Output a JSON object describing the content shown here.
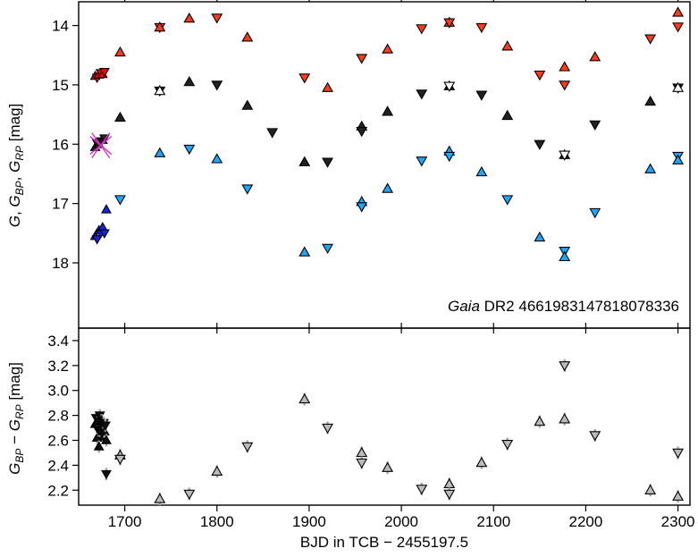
{
  "chart_data": [
    {
      "type": "scatter",
      "panel": "top",
      "annotation_italic": "Gaia",
      "annotation_rest": " DR2 4661983147818078336",
      "ylabel": "G, G_BP, G_RP [mag]",
      "ylim": [
        19.1,
        13.6
      ],
      "xlim": [
        1650,
        2313
      ],
      "yticks": [
        "14",
        "15",
        "16",
        "17",
        "18"
      ],
      "colors": {
        "G": "#222222",
        "BP": "#19a8ff",
        "RP": "#ff3a1a",
        "BP_dense": "#1122ee",
        "RP_dense": "#ff0000",
        "outlier": "#dd33cc"
      },
      "series": [
        {
          "name": "G",
          "markers": "black triangles",
          "points": [
            [
              1668,
              16.05
            ],
            [
              1670,
              15.98
            ],
            [
              1672,
              16.0
            ],
            [
              1674,
              15.95
            ],
            [
              1676,
              15.93
            ],
            [
              1678,
              15.9
            ],
            [
              1695,
              15.55
            ],
            [
              1738,
              15.1
            ],
            [
              1770,
              14.95
            ],
            [
              1800,
              15.0
            ],
            [
              1833,
              15.35
            ],
            [
              1860,
              15.8
            ],
            [
              1895,
              16.3
            ],
            [
              1920,
              16.3
            ],
            [
              1957,
              15.7
            ],
            [
              1957,
              15.78
            ],
            [
              1985,
              15.45
            ],
            [
              2022,
              15.15
            ],
            [
              2052,
              15.02
            ],
            [
              2087,
              15.17
            ],
            [
              2115,
              15.52
            ],
            [
              2150,
              16.0
            ],
            [
              2177,
              16.18
            ],
            [
              2210,
              15.67
            ],
            [
              2270,
              15.28
            ],
            [
              2300,
              15.05
            ]
          ]
        },
        {
          "name": "G_BP",
          "markers": "blue triangles",
          "points": [
            [
              1668,
              17.55
            ],
            [
              1670,
              17.6
            ],
            [
              1672,
              17.45
            ],
            [
              1674,
              17.5
            ],
            [
              1676,
              17.4
            ],
            [
              1678,
              17.5
            ],
            [
              1680,
              17.1
            ],
            [
              1695,
              16.93
            ],
            [
              1738,
              16.15
            ],
            [
              1770,
              16.08
            ],
            [
              1800,
              16.25
            ],
            [
              1833,
              16.75
            ],
            [
              1895,
              17.82
            ],
            [
              1920,
              17.75
            ],
            [
              1957,
              16.97
            ],
            [
              1957,
              17.05
            ],
            [
              1985,
              16.75
            ],
            [
              2022,
              16.28
            ],
            [
              2052,
              16.12
            ],
            [
              2052,
              16.2
            ],
            [
              2087,
              16.47
            ],
            [
              2115,
              16.93
            ],
            [
              2150,
              17.57
            ],
            [
              2177,
              17.8
            ],
            [
              2177,
              17.9
            ],
            [
              2210,
              17.15
            ],
            [
              2270,
              16.42
            ],
            [
              2300,
              16.2
            ],
            [
              2300,
              16.27
            ]
          ]
        },
        {
          "name": "G_RP",
          "markers": "red triangles",
          "points": [
            [
              1668,
              14.85
            ],
            [
              1670,
              14.88
            ],
            [
              1672,
              14.83
            ],
            [
              1674,
              14.8
            ],
            [
              1676,
              14.82
            ],
            [
              1678,
              14.78
            ],
            [
              1695,
              14.45
            ],
            [
              1738,
              14.03
            ],
            [
              1770,
              13.88
            ],
            [
              1800,
              13.87
            ],
            [
              1833,
              14.2
            ],
            [
              1895,
              14.88
            ],
            [
              1920,
              15.05
            ],
            [
              1957,
              14.55
            ],
            [
              1985,
              14.4
            ],
            [
              2022,
              14.05
            ],
            [
              2052,
              13.95
            ],
            [
              2087,
              14.03
            ],
            [
              2115,
              14.35
            ],
            [
              2150,
              14.83
            ],
            [
              2177,
              14.7
            ],
            [
              2177,
              15.0
            ],
            [
              2210,
              14.53
            ],
            [
              2270,
              14.22
            ],
            [
              2300,
              13.78
            ],
            [
              2300,
              14.02
            ]
          ]
        }
      ]
    },
    {
      "type": "scatter",
      "panel": "bottom",
      "xlabel": "BJD in TCB − 2455197.5",
      "ylabel": "G_BP − G_RP [mag]",
      "xlim": [
        1650,
        2313
      ],
      "ylim": [
        2.08,
        3.5
      ],
      "xticks": [
        "1700",
        "1800",
        "1900",
        "2000",
        "2100",
        "2200",
        "2300"
      ],
      "yticks": [
        "2.2",
        "2.4",
        "2.6",
        "2.8",
        "3.0",
        "3.2",
        "3.4"
      ],
      "series": [
        {
          "name": "G_BP - G_RP",
          "markers": "black triangles with grey error bars",
          "points": [
            [
              1668,
              2.73
            ],
            [
              1669,
              2.78
            ],
            [
              1670,
              2.62
            ],
            [
              1670,
              2.7
            ],
            [
              1671,
              2.75
            ],
            [
              1672,
              2.68
            ],
            [
              1672,
              2.55
            ],
            [
              1673,
              2.8
            ],
            [
              1674,
              2.72
            ],
            [
              1675,
              2.66
            ],
            [
              1675,
              2.76
            ],
            [
              1676,
              2.7
            ],
            [
              1677,
              2.63
            ],
            [
              1677,
              2.74
            ],
            [
              1678,
              2.67
            ],
            [
              1679,
              2.72
            ],
            [
              1680,
              2.6
            ],
            [
              1680,
              2.33
            ],
            [
              1695,
              2.48
            ],
            [
              1695,
              2.45
            ],
            [
              1738,
              2.13
            ],
            [
              1770,
              2.17
            ],
            [
              1800,
              2.35
            ],
            [
              1833,
              2.55
            ],
            [
              1895,
              2.93
            ],
            [
              1920,
              2.7
            ],
            [
              1957,
              2.5
            ],
            [
              1957,
              2.42
            ],
            [
              1985,
              2.38
            ],
            [
              2022,
              2.21
            ],
            [
              2052,
              2.25
            ],
            [
              2052,
              2.17
            ],
            [
              2087,
              2.42
            ],
            [
              2115,
              2.57
            ],
            [
              2150,
              2.75
            ],
            [
              2177,
              3.2
            ],
            [
              2177,
              2.77
            ],
            [
              2210,
              2.64
            ],
            [
              2270,
              2.2
            ],
            [
              2300,
              2.5
            ],
            [
              2300,
              2.15
            ]
          ]
        }
      ]
    }
  ]
}
